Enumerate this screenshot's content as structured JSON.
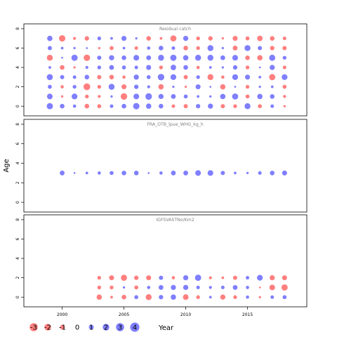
{
  "chart_data": {
    "type": "scatter",
    "subtype": "bubble-residuals",
    "xlabel": "Year",
    "ylabel": "Age",
    "x_ticks": [
      2000,
      2005,
      2010,
      2015
    ],
    "y_ticks": [
      0,
      2,
      4,
      6,
      8
    ],
    "xlim": [
      1996.9,
      2019.8
    ],
    "ylim": [
      -1.0,
      8.5
    ],
    "colors": {
      "positive": "#7f7fff",
      "negative": "#ff7f7f"
    },
    "panels": [
      {
        "title": "Residual catch",
        "years": [
          1999,
          2000,
          2001,
          2002,
          2003,
          2004,
          2005,
          2006,
          2007,
          2008,
          2009,
          2010,
          2011,
          2012,
          2013,
          2014,
          2015,
          2016,
          2017,
          2018
        ],
        "ages": [
          0,
          1,
          2,
          3,
          4,
          5,
          6,
          7
        ],
        "residuals": [
          [
            2.2,
            1.2,
            0.6,
            -1.2,
            -0.9,
            0.7,
            1.2,
            2.3,
            1.6,
            1.2,
            -0.7,
            -1.0,
            1.1,
            1.5,
            -1.0,
            -0.8,
            2.0,
            -0.9,
            0.7,
            -0.3
          ],
          [
            1.8,
            -0.3,
            1.9,
            -0.8,
            -0.5,
            0.3,
            -2.4,
            1.8,
            2.4,
            1.5,
            1.3,
            0.9,
            0.4,
            0.3,
            1.6,
            2.1,
            -0.9,
            1.6,
            1.2,
            -0.5
          ],
          [
            0.9,
            -0.6,
            0.8,
            -2.6,
            -0.8,
            2.0,
            -1.4,
            1.1,
            0.5,
            -1.6,
            0.3,
            -0.3,
            1.4,
            0.2,
            -1.6,
            0.2,
            -0.8,
            0.3,
            0.4,
            -0.9
          ],
          [
            2.1,
            1.0,
            0.7,
            1.2,
            -1.0,
            -1.2,
            -0.6,
            1.5,
            0.9,
            2.4,
            1.9,
            -1.0,
            0.8,
            -2.0,
            -0.6,
            1.9,
            1.4,
            0.4,
            -2.2,
            1.9
          ],
          [
            0.4,
            -1.2,
            -0.3,
            0.5,
            0.8,
            1.3,
            0.9,
            0.7,
            1.4,
            -0.8,
            1.7,
            1.2,
            -0.6,
            0.4,
            0.3,
            1.1,
            -0.8,
            0.2,
            1.5,
            -0.7
          ],
          [
            -2.0,
            0.2,
            2.2,
            -2.3,
            1.0,
            1.5,
            1.2,
            1.8,
            1.3,
            2.0,
            2.2,
            1.6,
            2.0,
            2.0,
            1.3,
            1.8,
            -1.2,
            -1.6,
            2.1,
            0.8
          ],
          [
            1.0,
            0.4,
            0.3,
            0.2,
            -0.3,
            -0.9,
            0.4,
            -0.7,
            0.6,
            1.2,
            0.7,
            -1.2,
            -0.8,
            2.0,
            0.3,
            -1.3,
            2.0,
            1.0,
            -1.1,
            -1.0
          ],
          [
            1.6,
            -2.3,
            -0.5,
            -1.1,
            0.8,
            0.4,
            1.4,
            0.3,
            -1.2,
            -0.4,
            -2.1,
            1.5,
            -0.8,
            -1.1,
            -0.3,
            -1.4,
            -0.9,
            -1.7,
            -1.2,
            -0.7
          ]
        ]
      },
      {
        "title": "FRA_OTB_lpue_WHG_kg_h",
        "years": [
          2000,
          2001,
          2002,
          2003,
          2004,
          2005,
          2006,
          2007,
          2008,
          2009,
          2010,
          2011,
          2012,
          2013,
          2014,
          2015,
          2016,
          2017,
          2018
        ],
        "ages": [
          3
        ],
        "residuals": [
          [
            1.3,
            0.2,
            0.4,
            0.6,
            0.9,
            1.2,
            1.2,
            0.2,
            0.6,
            1.3,
            1.3,
            1.8,
            1.8,
            1.0,
            0.4,
            0.3,
            0.7,
            1.2,
            1.4
          ]
        ]
      },
      {
        "title": "IGFSVASTNo/Km2",
        "years": [
          2003,
          2004,
          2005,
          2006,
          2007,
          2008,
          2009,
          2010,
          2011,
          2012,
          2013,
          2014,
          2015,
          2016,
          2017,
          2018
        ],
        "ages": [
          0,
          1,
          2
        ],
        "residuals": [
          [
            -1.6,
            -0.4,
            -1.2,
            0.9,
            -2.0,
            1.1,
            1.6,
            -1.8,
            -0.8,
            0.4,
            -1.5,
            -0.8,
            0.6,
            -0.3,
            0.7,
            0.9
          ],
          [
            -0.8,
            -0.8,
            0.3,
            -0.9,
            0.6,
            1.3,
            1.5,
            1.5,
            0.7,
            0.5,
            0.7,
            1.3,
            0.6,
            -0.2,
            -1.8,
            -2.2
          ],
          [
            -0.8,
            -1.4,
            -2.1,
            -1.1,
            -1.4,
            1.0,
            -0.6,
            1.5,
            2.2,
            -0.5,
            -0.4,
            -1.0,
            0.7,
            1.9,
            -1.5,
            -1.4
          ]
        ]
      }
    ],
    "legend": {
      "values": [
        -3,
        -2,
        -1,
        0,
        1,
        2,
        3,
        4
      ],
      "labels": [
        "-3",
        "-2",
        "-1",
        "0",
        "1",
        "2",
        "3",
        "4"
      ],
      "placement": "bottom-left"
    }
  }
}
